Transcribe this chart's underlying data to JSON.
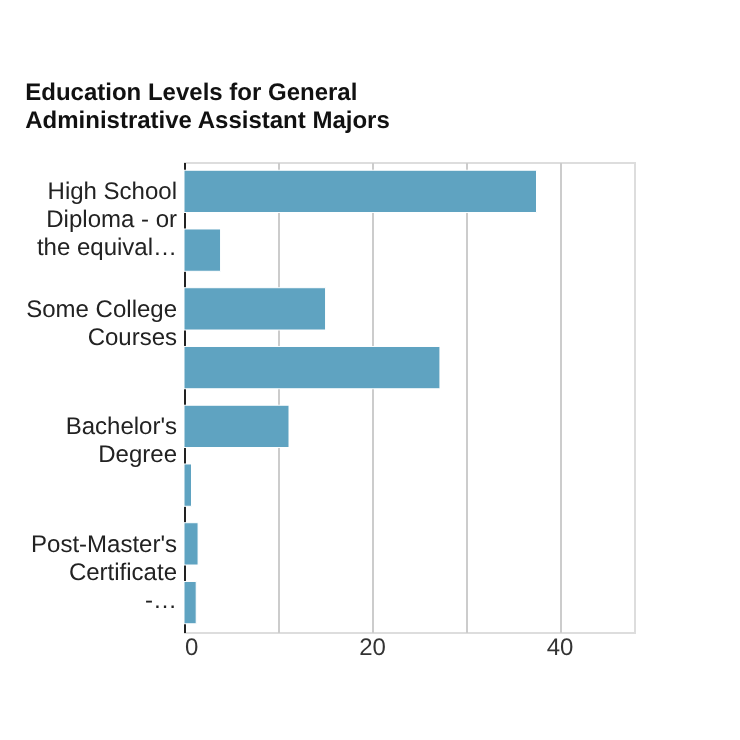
{
  "chart_data": {
    "type": "bar",
    "orientation": "horizontal",
    "title": "Education Levels for General Administrative Assistant Majors",
    "categories": [
      "High School Diploma - or the equival…",
      null,
      "Some College Courses",
      null,
      "Bachelor's Degree",
      null,
      "Post-Master's Certificate -…",
      null
    ],
    "values": [
      37.6,
      3.9,
      15.1,
      27.3,
      11.2,
      0.8,
      1.5,
      1.3
    ],
    "color": "#5fa3c1",
    "xlim": [
      0,
      48
    ],
    "xticks": [
      0,
      {
        "value": 10,
        "label": null
      },
      20,
      {
        "value": 30,
        "label": null
      },
      40
    ],
    "grid": "x"
  }
}
